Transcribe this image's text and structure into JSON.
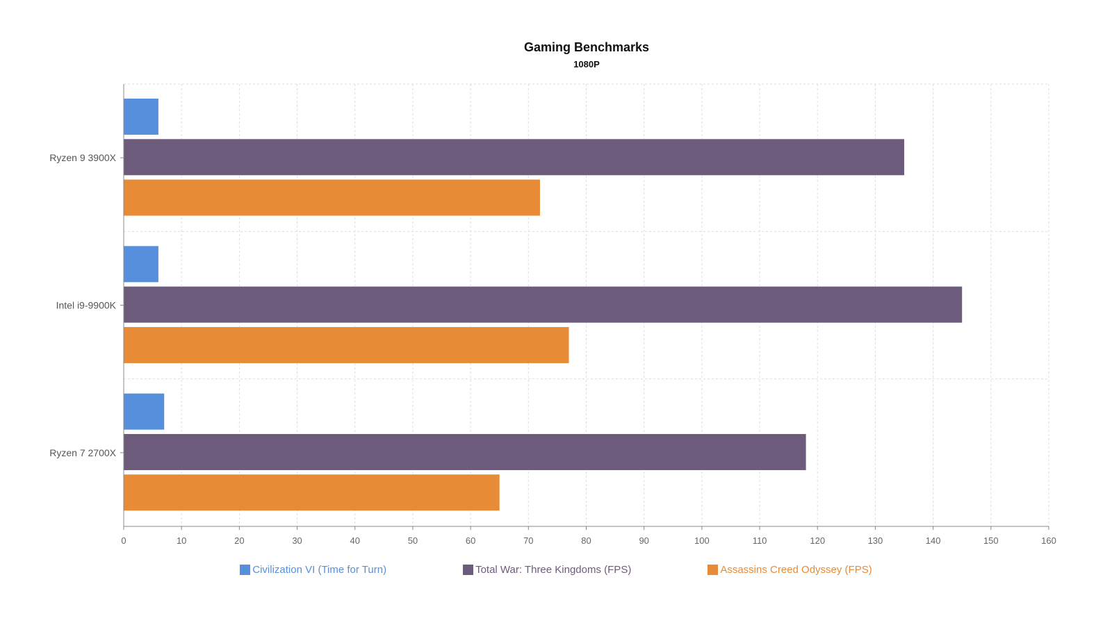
{
  "chart_data": {
    "type": "bar",
    "orientation": "horizontal",
    "title": "Gaming Benchmarks",
    "subtitle": "1080P",
    "categories": [
      "Ryzen 9 3900X",
      "Intel i9-9900K",
      "Ryzen 7 2700X"
    ],
    "series": [
      {
        "name": "Civilization VI (Time for Turn)",
        "color": "#5690dc",
        "values": [
          6,
          6,
          7
        ]
      },
      {
        "name": "Total War: Three Kingdoms (FPS)",
        "color": "#6c5b7b",
        "values": [
          135,
          145,
          118
        ]
      },
      {
        "name": "Assassins Creed Odyssey (FPS)",
        "color": "#e88b37",
        "values": [
          72,
          77,
          65
        ]
      }
    ],
    "xlim": [
      0,
      160
    ],
    "xticks": [
      0,
      10,
      20,
      30,
      40,
      50,
      60,
      70,
      80,
      90,
      100,
      110,
      120,
      130,
      140,
      150,
      160
    ],
    "grid": true,
    "legend_position": "bottom"
  }
}
